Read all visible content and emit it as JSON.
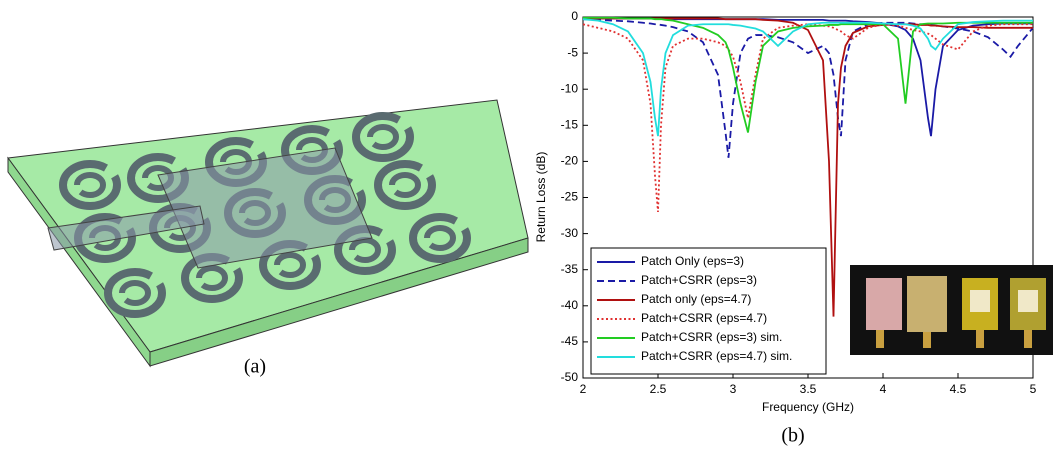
{
  "captions": [
    "(a)",
    "(b)"
  ],
  "chart_data": {
    "type": "line",
    "xlabel": "Frequency (GHz)",
    "ylabel": "Return Loss (dB)",
    "xlim": [
      2,
      5
    ],
    "xticks": [
      2,
      2.5,
      3,
      3.5,
      4,
      4.5,
      5
    ],
    "ylim": [
      -50,
      0
    ],
    "yticks": [
      0,
      -5,
      -10,
      -15,
      -20,
      -25,
      -30,
      -35,
      -40,
      -45,
      -50
    ],
    "grid": false,
    "legend": "lower left",
    "x": [
      2,
      2.1,
      2.2,
      2.3,
      2.4,
      2.45,
      2.48,
      2.5,
      2.52,
      2.55,
      2.6,
      2.7,
      2.8,
      2.9,
      2.95,
      2.97,
      3,
      3.05,
      3.1,
      3.15,
      3.2,
      3.3,
      3.4,
      3.5,
      3.6,
      3.64,
      3.67,
      3.7,
      3.72,
      3.75,
      3.8,
      3.9,
      4,
      4.1,
      4.15,
      4.2,
      4.25,
      4.3,
      4.32,
      4.35,
      4.4,
      4.5,
      4.6,
      4.7,
      4.8,
      4.85,
      4.9,
      5
    ],
    "series": [
      {
        "name": "Patch Only (eps=3)",
        "color": "#1a1aa6",
        "dash": "solid",
        "values": [
          -0.2,
          -0.2,
          -0.2,
          -0.2,
          -0.2,
          -0.2,
          -0.2,
          -0.2,
          -0.2,
          -0.2,
          -0.3,
          -0.3,
          -0.3,
          -0.3,
          -0.3,
          -0.3,
          -0.3,
          -0.3,
          -0.3,
          -0.3,
          -0.3,
          -0.4,
          -0.4,
          -0.4,
          -0.4,
          -0.5,
          -0.5,
          -0.5,
          -0.5,
          -0.5,
          -0.6,
          -0.7,
          -0.9,
          -1.3,
          -1.8,
          -3,
          -6,
          -14,
          -16.5,
          -10,
          -4,
          -1.8,
          -1.2,
          -1,
          -0.9,
          -0.9,
          -0.9,
          -0.9
        ]
      },
      {
        "name": "Patch+CSRR (eps=3)",
        "color": "#1a1aa6",
        "dash": "dashed",
        "values": [
          -0.3,
          -0.4,
          -0.5,
          -0.6,
          -0.8,
          -0.9,
          -1,
          -1,
          -1.1,
          -1.2,
          -1.4,
          -2,
          -3.5,
          -8,
          -16,
          -19.5,
          -12,
          -5,
          -3,
          -2.5,
          -2.5,
          -2.8,
          -3.5,
          -5,
          -4,
          -5,
          -8,
          -14,
          -16.5,
          -6,
          -2,
          -1,
          -0.8,
          -0.8,
          -0.8,
          -0.9,
          -1,
          -1.1,
          -1.1,
          -1.2,
          -1.3,
          -1.6,
          -2,
          -2.8,
          -4.5,
          -5.5,
          -4,
          -1.5
        ]
      },
      {
        "name": "Patch only (eps=4.7)",
        "color": "#b01010",
        "dash": "solid",
        "values": [
          -0.2,
          -0.2,
          -0.2,
          -0.2,
          -0.2,
          -0.2,
          -0.2,
          -0.2,
          -0.2,
          -0.2,
          -0.2,
          -0.2,
          -0.2,
          -0.2,
          -0.3,
          -0.3,
          -0.3,
          -0.3,
          -0.3,
          -0.3,
          -0.4,
          -0.5,
          -0.8,
          -1.8,
          -6,
          -20,
          -41.5,
          -12,
          -7,
          -4,
          -2.2,
          -1.3,
          -1.1,
          -1,
          -1,
          -1,
          -1.1,
          -1.1,
          -1.2,
          -1.2,
          -1.3,
          -1.4,
          -1.4,
          -1.5,
          -1.5,
          -1.5,
          -1.5,
          -1.5
        ]
      },
      {
        "name": "Patch+CSRR (eps=4.7)",
        "color": "#e03030",
        "dash": "dotted",
        "values": [
          -1,
          -1.5,
          -2,
          -3,
          -6,
          -12,
          -22,
          -27,
          -15,
          -7,
          -4,
          -3,
          -3,
          -3.5,
          -4,
          -4.5,
          -5.5,
          -9,
          -14,
          -8,
          -3,
          -1.5,
          -1.2,
          -1,
          -1.2,
          -1.3,
          -1.5,
          -1.8,
          -2,
          -2.5,
          -3,
          -1.5,
          -1,
          -1.2,
          -1.5,
          -1.8,
          -2,
          -2.3,
          -2.5,
          -3,
          -3.8,
          -4.5,
          -2,
          -1.2,
          -1,
          -1,
          -1,
          -1
        ]
      },
      {
        "name": "Patch+CSRR (eps=3) sim.",
        "color": "#22cc22",
        "dash": "solid",
        "values": [
          -0.1,
          -0.1,
          -0.1,
          -0.2,
          -0.2,
          -0.2,
          -0.3,
          -0.3,
          -0.3,
          -0.4,
          -0.5,
          -1,
          -1.5,
          -2.5,
          -3.5,
          -4.5,
          -7,
          -12,
          -16,
          -9,
          -4,
          -2,
          -1.5,
          -1.3,
          -1.2,
          -1.1,
          -1.1,
          -1.1,
          -1,
          -1,
          -1,
          -1,
          -1,
          -3,
          -12,
          -2,
          -1,
          -0.9,
          -0.9,
          -0.9,
          -0.9,
          -0.8,
          -0.8,
          -0.8,
          -0.8,
          -0.8,
          -0.8,
          -0.8
        ]
      },
      {
        "name": "Patch+CSRR (eps=4.7) sim.",
        "color": "#22dddd",
        "dash": "solid",
        "values": [
          -0.3,
          -0.5,
          -1,
          -2,
          -5,
          -9,
          -14,
          -16.5,
          -10,
          -5,
          -2.5,
          -1.2,
          -1,
          -1,
          -1,
          -1,
          -1.1,
          -1.2,
          -1.4,
          -1.6,
          -2,
          -4,
          -2,
          -1,
          -0.8,
          -0.8,
          -0.8,
          -0.8,
          -0.8,
          -0.8,
          -0.8,
          -0.8,
          -0.9,
          -1,
          -1,
          -1.2,
          -1.6,
          -3,
          -4,
          -4.5,
          -3,
          -1,
          -0.7,
          -0.6,
          -0.5,
          -0.5,
          -0.5,
          -0.5
        ]
      }
    ]
  }
}
